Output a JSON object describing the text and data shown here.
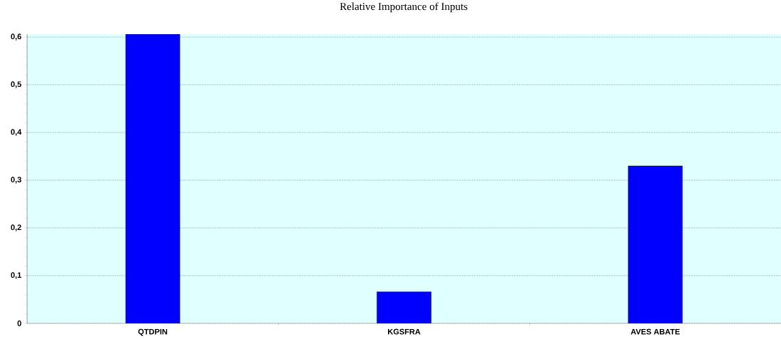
{
  "chart_data": {
    "type": "bar",
    "title": "Relative Importance of Inputs",
    "categories": [
      "QTDPIN",
      "KGSFRA",
      "AVES ABATE"
    ],
    "values": [
      0.606,
      0.066,
      0.33
    ],
    "color": "#0000ff",
    "ylim": [
      0,
      0.606
    ],
    "yticks": [
      {
        "value": 0,
        "label": "0"
      },
      {
        "value": 0.1,
        "label": "0,1"
      },
      {
        "value": 0.2,
        "label": "0,2"
      },
      {
        "value": 0.3,
        "label": "0,3"
      },
      {
        "value": 0.4,
        "label": "0,4"
      },
      {
        "value": 0.5,
        "label": "0,5"
      },
      {
        "value": 0.6,
        "label": "0,6"
      }
    ],
    "grid": "y"
  }
}
